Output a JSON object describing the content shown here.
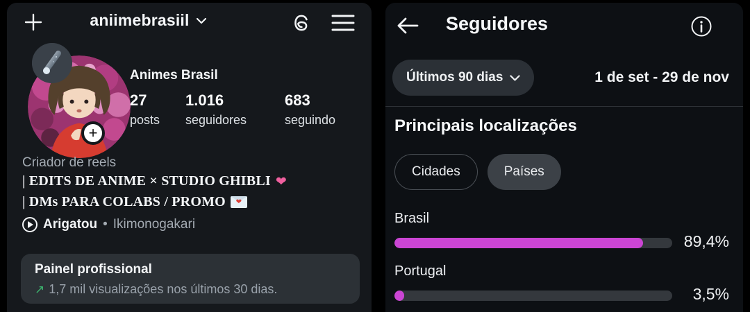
{
  "colors": {
    "page_background": "#000000",
    "left_panel_background": "#15181c",
    "right_panel_background": "#0d1014",
    "card_background": "#2c3136",
    "pill_background": "#2b3036",
    "chip_selected_background": "#3c4147",
    "bar_fill": "#cb45d4",
    "bar_track": "#34383d",
    "positive_green": "#3cb46e",
    "muted_text": "#a4abb3"
  },
  "icons": {
    "plus": "+",
    "story_add": "+",
    "back": "←",
    "trend_up": "↗",
    "bullet": "•",
    "heart": "❤",
    "envelope_heart": "❤",
    "info_i": "i"
  },
  "left_panel": {
    "header": {
      "username": "aniimebrasiil"
    },
    "profile": {
      "name": "Animes Brasil",
      "stats": [
        {
          "value": "27",
          "label": "posts"
        },
        {
          "value": "1.016",
          "label": "seguidores"
        },
        {
          "value": "683",
          "label": "seguindo"
        }
      ],
      "category": "Criador de reels",
      "bio_lines": [
        {
          "text": "| EDITS DE ANIME × STUDIO GHIBLI",
          "icon": "pink-heart"
        },
        {
          "text": "| DMs PARA COLABS / PROMO",
          "icon": "love-letter"
        }
      ],
      "music": {
        "title": "Arigatou",
        "separator": "•",
        "artist": "Ikimonogakari"
      }
    },
    "professional_panel": {
      "title": "Painel profissional",
      "subtitle": "1,7 mil visualizações nos últimos 30 dias."
    }
  },
  "right_panel": {
    "header": {
      "title": "Seguidores"
    },
    "filter": {
      "period_label": "Últimos 90 dias",
      "date_range": "1 de set - 29 de nov"
    },
    "section_title": "Principais localizações",
    "tabs": [
      {
        "label": "Cidades",
        "selected": false
      },
      {
        "label": "Países",
        "selected": true
      }
    ],
    "chart_data": {
      "type": "bar",
      "title": "Principais localizações",
      "categories": [
        "Brasil",
        "Portugal"
      ],
      "values": [
        89.4,
        3.5
      ],
      "value_labels": [
        "89,4%",
        "3,5%"
      ],
      "xlim": [
        0,
        100
      ],
      "bar_color": "#cb45d4",
      "legend": "none"
    }
  }
}
